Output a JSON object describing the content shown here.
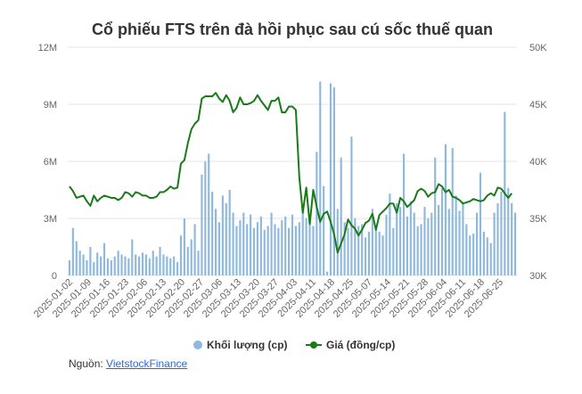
{
  "chart_data": {
    "type": "bar+line",
    "title": "Cổ phiếu FTS trên đà hồi phục sau cú sốc thuế quan",
    "y_left": {
      "ticks": [
        "0",
        "3M",
        "6M",
        "9M",
        "12M"
      ],
      "range": [
        0,
        12000000
      ]
    },
    "y_right": {
      "ticks": [
        "30K",
        "35K",
        "40K",
        "45K",
        "50K"
      ],
      "range": [
        30000,
        50000
      ]
    },
    "x_tick_labels": [
      "2025-01-02",
      "2025-01-09",
      "2025-01-16",
      "2025-01-23",
      "2025-02-06",
      "2025-02-13",
      "2025-02-20",
      "2025-02-27",
      "2025-03-06",
      "2025-03-13",
      "2025-03-20",
      "2025-03-27",
      "2025-04-03",
      "2025-04-11",
      "2025-04-18",
      "2025-04-25",
      "2025-05-07",
      "2025-05-14",
      "2025-05-21",
      "2025-05-28",
      "2025-06-04",
      "2025-06-11",
      "2025-06-18",
      "2025-06-25"
    ],
    "grid": true,
    "legend_position": "bottom",
    "series": [
      {
        "name": "Khối lượng (cp)",
        "type": "bar",
        "axis": "left",
        "color": "#8fb8dd",
        "values": [
          800000,
          2500000,
          1800000,
          1300000,
          1100000,
          800000,
          1500000,
          700000,
          1200000,
          1000000,
          1700000,
          900000,
          800000,
          1000000,
          1300000,
          1100000,
          1000000,
          900000,
          1900000,
          1100000,
          1000000,
          1200000,
          1100000,
          900000,
          1300000,
          1000000,
          1500000,
          1100000,
          1000000,
          900000,
          1000000,
          700000,
          2100000,
          3000000,
          1500000,
          1900000,
          2700000,
          1300000,
          5300000,
          6000000,
          6400000,
          4400000,
          3500000,
          2800000,
          4200000,
          3800000,
          4500000,
          3300000,
          2600000,
          2900000,
          3300000,
          2700000,
          3200000,
          2500000,
          2800000,
          3100000,
          2400000,
          2600000,
          3300000,
          2700000,
          2500000,
          2900000,
          3100000,
          2500000,
          3200000,
          2600000,
          2800000,
          3500000,
          3000000,
          3200000,
          2600000,
          6500000,
          10200000,
          4700000,
          200000,
          10100000,
          9900000,
          3500000,
          6200000,
          2800000,
          2500000,
          7300000,
          3000000,
          2600000,
          2700000,
          2000000,
          2300000,
          3500000,
          2400000,
          2300000,
          2100000,
          3200000,
          4300000,
          2500000,
          3800000,
          3600000,
          6400000,
          3100000,
          3900000,
          3300000,
          2600000,
          2700000,
          3600000,
          3000000,
          3300000,
          6200000,
          3700000,
          4600000,
          6900000,
          3500000,
          6700000,
          4200000,
          3400000,
          3800000,
          2700000,
          2100000,
          2200000,
          3300000,
          5400000,
          2300000,
          2000000,
          1700000,
          3300000,
          3800000,
          4400000,
          8600000,
          4600000,
          3800000,
          3300000
        ]
      },
      {
        "name": "Giá (đồng/cp)",
        "type": "line",
        "axis": "right",
        "color": "#1a7a1a",
        "values": [
          37800,
          37400,
          36800,
          36900,
          37000,
          36500,
          36100,
          37000,
          36500,
          36800,
          37000,
          36900,
          36800,
          36800,
          36600,
          36800,
          37300,
          37200,
          36900,
          37300,
          37200,
          37000,
          37000,
          36800,
          36800,
          36900,
          37300,
          37300,
          37500,
          37800,
          37600,
          37700,
          39800,
          40100,
          41600,
          42800,
          43300,
          43600,
          45500,
          45700,
          45700,
          45700,
          46000,
          45500,
          45200,
          45800,
          45300,
          44300,
          44700,
          45600,
          45000,
          45000,
          45100,
          45300,
          45800,
          45300,
          44900,
          44500,
          45300,
          45300,
          45600,
          44300,
          44300,
          44800,
          44800,
          44500,
          38600,
          35500,
          37700,
          34500,
          37500,
          36000,
          34700,
          35400,
          35600,
          34700,
          33600,
          32000,
          32800,
          33600,
          34900,
          34400,
          34100,
          33500,
          34000,
          34600,
          34800,
          35400,
          34000,
          35300,
          35600,
          35900,
          36300,
          36300,
          35500,
          36800,
          36500,
          36000,
          36300,
          36600,
          37400,
          37600,
          37400,
          36900,
          37200,
          37300,
          38000,
          37800,
          37300,
          37500,
          36900,
          36800,
          36600,
          36300,
          36400,
          36500,
          36700,
          36600,
          36500,
          36600,
          37000,
          37200,
          37000,
          37700,
          37600,
          37200,
          36800,
          37200
        ]
      }
    ]
  },
  "legend": {
    "volume_label": "Khối lượng (cp)",
    "price_label": "Giá (đồng/cp)"
  },
  "source": {
    "prefix": "Nguồn: ",
    "link_text": "VietstockFinance"
  },
  "colors": {
    "bar": "#8fb8dd",
    "line": "#1a7a1a",
    "grid": "#e6e6e6"
  }
}
